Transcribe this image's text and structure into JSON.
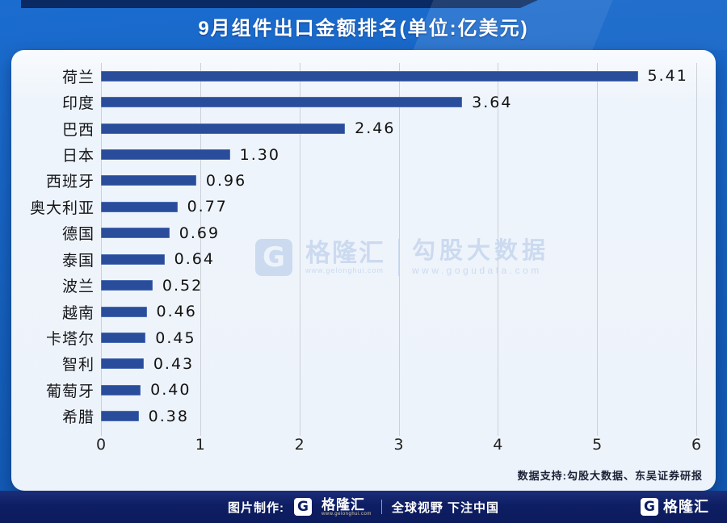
{
  "header": {
    "title": "9月组件出口金额排名(单位:亿美元)"
  },
  "chart_data": {
    "type": "bar",
    "orientation": "horizontal",
    "title": "9月组件出口金额排名(单位:亿美元)",
    "unit": "亿美元",
    "categories": [
      "荷兰",
      "印度",
      "巴西",
      "日本",
      "西班牙",
      "奥大利亚",
      "德国",
      "泰国",
      "波兰",
      "越南",
      "卡塔尔",
      "智利",
      "葡萄牙",
      "希腊"
    ],
    "values": [
      5.41,
      3.64,
      2.46,
      1.3,
      0.96,
      0.77,
      0.69,
      0.64,
      0.52,
      0.46,
      0.45,
      0.43,
      0.4,
      0.38
    ],
    "value_labels": [
      "5.41",
      "3.64",
      "2.46",
      "1.30",
      "0.96",
      "0.77",
      "0.69",
      "0.64",
      "0.52",
      "0.46",
      "0.45",
      "0.43",
      "0.40",
      "0.38"
    ],
    "x_ticks": [
      0,
      1,
      2,
      3,
      4,
      5,
      6
    ],
    "xlim": [
      0,
      6
    ],
    "grid": true,
    "legend": "none",
    "bar_color": "#2a4d9b",
    "plot_bg": "#edf3fa"
  },
  "watermark": {
    "logo_letter": "G",
    "brand": "格隆汇",
    "brand_url": "www.gelonghui.com",
    "partner": "勾股大数据",
    "partner_url": "www.gogudata.com"
  },
  "card": {
    "source_note": "数据支持:勾股大数据、东吴证券研报"
  },
  "footer": {
    "made_by": "图片制作:",
    "logo_letter": "G",
    "brand": "格隆汇",
    "brand_url": "www.gelonghui.com",
    "slogan": "全球视野 下注中国",
    "corner_logo_letter": "G",
    "corner_brand": "格隆汇"
  },
  "colors": {
    "header_blue": "#1b6ccf",
    "ribbon_navy": "#0a2a63",
    "bar": "#2a4d9b",
    "footer_navy": "#0e1e63",
    "watermark": "#c9d8ef",
    "gridline": "#ccd1d8"
  }
}
